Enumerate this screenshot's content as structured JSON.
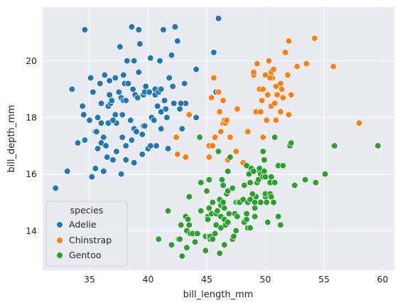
{
  "chart_data": {
    "type": "scatter",
    "title": "",
    "xlabel": "bill_length_mm",
    "ylabel": "bill_depth_mm",
    "xlim": [
      31.0,
      61.0
    ],
    "ylim": [
      12.6,
      21.9
    ],
    "xticks": [
      35,
      40,
      45,
      50,
      55,
      60
    ],
    "yticks": [
      14,
      16,
      18,
      20
    ],
    "grid": true,
    "legend": {
      "title": "species",
      "placement": "lower-left"
    },
    "series": [
      {
        "name": "Adelie",
        "color": "#1f77b4",
        "points": [
          [
            32.1,
            15.5
          ],
          [
            33.1,
            16.1
          ],
          [
            33.5,
            19.0
          ],
          [
            34.0,
            17.1
          ],
          [
            34.4,
            18.4
          ],
          [
            34.5,
            18.1
          ],
          [
            34.6,
            21.1
          ],
          [
            34.6,
            17.2
          ],
          [
            35.0,
            17.9
          ],
          [
            35.1,
            19.4
          ],
          [
            35.2,
            15.9
          ],
          [
            35.3,
            18.9
          ],
          [
            35.5,
            17.5
          ],
          [
            35.5,
            16.2
          ],
          [
            35.6,
            17.5
          ],
          [
            35.7,
            16.9
          ],
          [
            35.9,
            19.2
          ],
          [
            36.0,
            18.5
          ],
          [
            36.0,
            17.8
          ],
          [
            36.0,
            17.1
          ],
          [
            36.2,
            17.3
          ],
          [
            36.2,
            16.1
          ],
          [
            36.3,
            19.5
          ],
          [
            36.4,
            17.0
          ],
          [
            36.5,
            16.6
          ],
          [
            36.6,
            18.4
          ],
          [
            36.7,
            19.3
          ],
          [
            36.7,
            18.8
          ],
          [
            36.8,
            18.5
          ],
          [
            36.9,
            18.6
          ],
          [
            37.0,
            16.5
          ],
          [
            37.2,
            19.4
          ],
          [
            37.2,
            18.1
          ],
          [
            37.3,
            17.8
          ],
          [
            37.3,
            16.8
          ],
          [
            37.5,
            18.9
          ],
          [
            37.6,
            20.5
          ],
          [
            37.7,
            18.7
          ],
          [
            37.7,
            16.0
          ],
          [
            37.8,
            17.3
          ],
          [
            37.8,
            18.1
          ],
          [
            37.9,
            18.6
          ],
          [
            38.0,
            19.2
          ],
          [
            38.1,
            18.6
          ],
          [
            38.1,
            17.0
          ],
          [
            38.2,
            20.0
          ],
          [
            38.3,
            19.2
          ],
          [
            38.5,
            17.9
          ],
          [
            38.6,
            21.2
          ],
          [
            38.6,
            17.2
          ],
          [
            38.7,
            19.0
          ],
          [
            38.8,
            20.0
          ],
          [
            38.8,
            17.6
          ],
          [
            38.9,
            18.8
          ],
          [
            39.0,
            17.5
          ],
          [
            39.1,
            18.7
          ],
          [
            39.2,
            19.6
          ],
          [
            39.2,
            21.1
          ],
          [
            39.3,
            20.6
          ],
          [
            39.5,
            17.4
          ],
          [
            39.5,
            16.7
          ],
          [
            39.6,
            17.7
          ],
          [
            39.6,
            18.8
          ],
          [
            39.7,
            18.9
          ],
          [
            39.8,
            19.1
          ],
          [
            40.0,
            16.9
          ],
          [
            40.1,
            18.9
          ],
          [
            40.2,
            17.0
          ],
          [
            40.3,
            18.0
          ],
          [
            40.5,
            17.9
          ],
          [
            40.6,
            18.8
          ],
          [
            40.6,
            19.0
          ],
          [
            40.7,
            17.0
          ],
          [
            40.8,
            18.4
          ],
          [
            40.9,
            18.9
          ],
          [
            41.0,
            20.0
          ],
          [
            41.1,
            19.0
          ],
          [
            41.1,
            17.6
          ],
          [
            41.3,
            21.1
          ],
          [
            41.4,
            18.6
          ],
          [
            41.5,
            18.3
          ],
          [
            41.6,
            18.0
          ],
          [
            41.8,
            19.4
          ],
          [
            42.0,
            20.2
          ],
          [
            42.1,
            19.1
          ],
          [
            42.2,
            18.5
          ],
          [
            42.3,
            21.2
          ],
          [
            42.5,
            20.7
          ],
          [
            42.7,
            18.3
          ],
          [
            42.9,
            17.6
          ],
          [
            43.1,
            19.2
          ],
          [
            43.2,
            18.5
          ],
          [
            44.1,
            19.7
          ],
          [
            44.1,
            18.0
          ],
          [
            45.8,
            18.9
          ],
          [
            46.0,
            21.5
          ],
          [
            45.6,
            20.3
          ],
          [
            42.8,
            18.5
          ],
          [
            41.1,
            18.2
          ],
          [
            39.7,
            17.7
          ],
          [
            38.1,
            16.5
          ],
          [
            36.6,
            17.8
          ],
          [
            37.9,
            19.5
          ],
          [
            40.2,
            20.1
          ],
          [
            41.7,
            16.9
          ],
          [
            38.8,
            16.4
          ],
          [
            37.0,
            17.9
          ],
          [
            35.7,
            18.0
          ]
        ]
      },
      {
        "name": "Chinstrap",
        "color": "#ff7f0e",
        "points": [
          [
            42.4,
            17.3
          ],
          [
            42.5,
            16.7
          ],
          [
            43.2,
            16.6
          ],
          [
            43.5,
            18.1
          ],
          [
            45.2,
            16.6
          ],
          [
            45.2,
            17.0
          ],
          [
            45.4,
            18.7
          ],
          [
            45.5,
            17.0
          ],
          [
            45.6,
            19.4
          ],
          [
            45.7,
            17.3
          ],
          [
            46.0,
            18.9
          ],
          [
            46.1,
            18.2
          ],
          [
            46.2,
            17.5
          ],
          [
            46.4,
            18.6
          ],
          [
            46.4,
            17.8
          ],
          [
            46.5,
            17.9
          ],
          [
            46.6,
            17.8
          ],
          [
            46.7,
            17.9
          ],
          [
            46.8,
            16.5
          ],
          [
            47.0,
            17.3
          ],
          [
            47.5,
            16.8
          ],
          [
            47.6,
            18.3
          ],
          [
            48.1,
            16.4
          ],
          [
            48.5,
            17.5
          ],
          [
            49.0,
            19.5
          ],
          [
            49.0,
            19.6
          ],
          [
            49.2,
            18.2
          ],
          [
            49.3,
            19.9
          ],
          [
            49.5,
            19.0
          ],
          [
            49.6,
            18.2
          ],
          [
            49.7,
            18.6
          ],
          [
            49.8,
            17.3
          ],
          [
            49.8,
            19.0
          ],
          [
            50.0,
            19.5
          ],
          [
            50.1,
            17.9
          ],
          [
            50.2,
            18.8
          ],
          [
            50.3,
            20.0
          ],
          [
            50.5,
            18.4
          ],
          [
            50.5,
            19.6
          ],
          [
            50.6,
            19.4
          ],
          [
            50.7,
            19.7
          ],
          [
            50.8,
            18.5
          ],
          [
            50.9,
            17.9
          ],
          [
            50.9,
            19.1
          ],
          [
            51.0,
            18.8
          ],
          [
            51.3,
            19.2
          ],
          [
            51.3,
            18.2
          ],
          [
            51.4,
            19.0
          ],
          [
            51.5,
            18.7
          ],
          [
            51.7,
            20.3
          ],
          [
            51.9,
            19.5
          ],
          [
            52.0,
            18.1
          ],
          [
            52.0,
            20.7
          ],
          [
            52.2,
            18.8
          ],
          [
            52.7,
            19.8
          ],
          [
            53.5,
            19.9
          ],
          [
            54.2,
            20.8
          ],
          [
            55.8,
            19.8
          ],
          [
            58.0,
            17.8
          ],
          [
            50.4,
            19.4
          ]
        ]
      },
      {
        "name": "Gentoo",
        "color": "#2ca02c",
        "points": [
          [
            40.9,
            13.7
          ],
          [
            41.7,
            14.7
          ],
          [
            42.0,
            13.5
          ],
          [
            42.6,
            13.7
          ],
          [
            42.7,
            13.7
          ],
          [
            42.8,
            14.2
          ],
          [
            42.9,
            13.1
          ],
          [
            43.2,
            14.5
          ],
          [
            43.3,
            14.0
          ],
          [
            43.3,
            13.4
          ],
          [
            43.4,
            14.4
          ],
          [
            43.5,
            14.2
          ],
          [
            43.5,
            15.2
          ],
          [
            43.6,
            13.9
          ],
          [
            43.8,
            13.9
          ],
          [
            44.0,
            13.6
          ],
          [
            44.4,
            17.3
          ],
          [
            44.5,
            15.7
          ],
          [
            44.5,
            14.7
          ],
          [
            44.9,
            13.8
          ],
          [
            44.9,
            13.3
          ],
          [
            45.0,
            15.4
          ],
          [
            45.1,
            14.5
          ],
          [
            45.1,
            14.4
          ],
          [
            45.2,
            13.8
          ],
          [
            45.2,
            14.8
          ],
          [
            45.2,
            15.8
          ],
          [
            45.3,
            13.7
          ],
          [
            45.3,
            13.8
          ],
          [
            45.4,
            14.6
          ],
          [
            45.5,
            13.7
          ],
          [
            45.5,
            15.0
          ],
          [
            45.7,
            13.9
          ],
          [
            45.8,
            14.2
          ],
          [
            45.8,
            14.6
          ],
          [
            46.1,
            13.2
          ],
          [
            46.1,
            15.1
          ],
          [
            46.2,
            14.1
          ],
          [
            46.2,
            14.5
          ],
          [
            46.2,
            14.9
          ],
          [
            46.3,
            15.8
          ],
          [
            46.4,
            15.0
          ],
          [
            46.4,
            15.6
          ],
          [
            46.5,
            13.5
          ],
          [
            46.5,
            14.4
          ],
          [
            46.5,
            14.8
          ],
          [
            46.6,
            14.2
          ],
          [
            46.7,
            15.3
          ],
          [
            46.8,
            14.3
          ],
          [
            46.8,
            15.4
          ],
          [
            46.8,
            16.1
          ],
          [
            46.9,
            14.6
          ],
          [
            47.2,
            13.7
          ],
          [
            47.2,
            15.5
          ],
          [
            47.3,
            13.8
          ],
          [
            47.4,
            14.6
          ],
          [
            47.5,
            14.0
          ],
          [
            47.5,
            15.0
          ],
          [
            47.6,
            14.5
          ],
          [
            47.7,
            15.0
          ],
          [
            47.8,
            15.0
          ],
          [
            48.1,
            15.1
          ],
          [
            48.2,
            14.3
          ],
          [
            48.2,
            15.6
          ],
          [
            48.4,
            14.4
          ],
          [
            48.4,
            14.6
          ],
          [
            48.4,
            16.3
          ],
          [
            48.5,
            14.1
          ],
          [
            48.5,
            15.0
          ],
          [
            48.6,
            16.0
          ],
          [
            48.7,
            14.1
          ],
          [
            48.7,
            15.1
          ],
          [
            48.7,
            15.7
          ],
          [
            48.8,
            16.2
          ],
          [
            49.0,
            16.1
          ],
          [
            49.1,
            14.5
          ],
          [
            49.1,
            14.8
          ],
          [
            49.1,
            15.0
          ],
          [
            49.2,
            15.2
          ],
          [
            49.3,
            15.7
          ],
          [
            49.4,
            15.8
          ],
          [
            49.5,
            16.1
          ],
          [
            49.5,
            16.2
          ],
          [
            49.6,
            15.0
          ],
          [
            49.6,
            16.0
          ],
          [
            49.8,
            15.9
          ],
          [
            49.8,
            16.8
          ],
          [
            49.9,
            16.1
          ],
          [
            50.0,
            15.2
          ],
          [
            50.0,
            15.3
          ],
          [
            50.0,
            15.9
          ],
          [
            50.1,
            15.0
          ],
          [
            50.2,
            14.3
          ],
          [
            50.4,
            15.3
          ],
          [
            50.4,
            15.7
          ],
          [
            50.5,
            15.2
          ],
          [
            50.5,
            15.9
          ],
          [
            50.7,
            15.0
          ],
          [
            50.8,
            15.7
          ],
          [
            50.8,
            17.3
          ],
          [
            51.1,
            14.5
          ],
          [
            51.1,
            16.3
          ],
          [
            51.3,
            14.2
          ],
          [
            51.5,
            16.3
          ],
          [
            52.1,
            17.0
          ],
          [
            52.2,
            17.1
          ],
          [
            52.5,
            15.6
          ],
          [
            53.4,
            15.8
          ],
          [
            54.3,
            15.7
          ],
          [
            55.1,
            16.0
          ],
          [
            55.9,
            17.0
          ],
          [
            59.6,
            17.0
          ],
          [
            49.9,
            16.5
          ],
          [
            47.0,
            16.6
          ],
          [
            46.0,
            16.8
          ],
          [
            48.9,
            15.3
          ],
          [
            45.9,
            14.7
          ],
          [
            44.2,
            13.9
          ]
        ]
      }
    ]
  }
}
